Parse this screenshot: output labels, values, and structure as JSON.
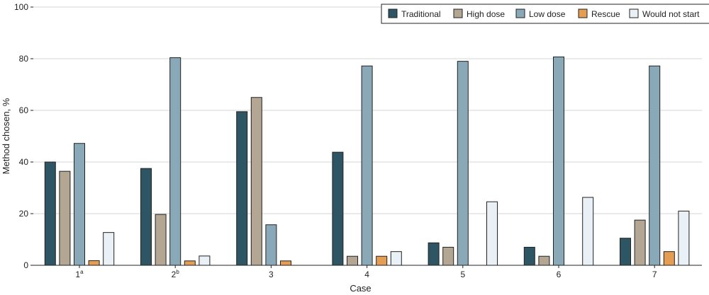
{
  "chart_data": {
    "type": "bar",
    "title": "",
    "xlabel": "Case",
    "ylabel": "Method chosen, %",
    "ylim": [
      0,
      100
    ],
    "yticks": [
      0,
      20,
      40,
      60,
      80,
      100
    ],
    "grid": true,
    "legend_position": "top-right",
    "categories": [
      {
        "label": "1",
        "sup": "a"
      },
      {
        "label": "2",
        "sup": "b"
      },
      {
        "label": "3",
        "sup": ""
      },
      {
        "label": "4",
        "sup": ""
      },
      {
        "label": "5",
        "sup": ""
      },
      {
        "label": "6",
        "sup": ""
      },
      {
        "label": "7",
        "sup": ""
      }
    ],
    "series": [
      {
        "name": "Traditional",
        "color": "#2e5563",
        "values": [
          40,
          37.5,
          59.5,
          43.8,
          8.7,
          7,
          10.5
        ]
      },
      {
        "name": "High dose",
        "color": "#b3a794",
        "values": [
          36.4,
          19.7,
          65,
          3.5,
          7,
          3.5,
          17.5
        ]
      },
      {
        "name": "Low dose",
        "color": "#8aa9b8",
        "values": [
          47.2,
          80.4,
          15.7,
          77.2,
          79,
          80.7,
          77.2
        ]
      },
      {
        "name": "Rescue",
        "color": "#e59d54",
        "values": [
          1.8,
          1.7,
          1.7,
          3.5,
          0,
          0,
          5.3
        ]
      },
      {
        "name": "Would not start",
        "color": "#e9f1f6",
        "values": [
          12.7,
          3.6,
          0,
          5.3,
          24.6,
          26.3,
          21
        ]
      }
    ]
  }
}
